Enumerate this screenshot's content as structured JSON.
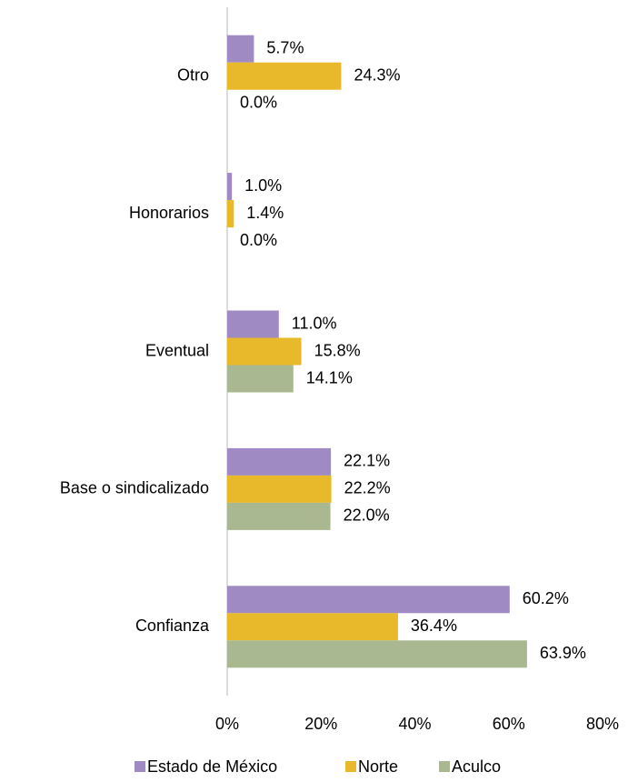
{
  "chart_data": {
    "type": "barh",
    "categories": [
      "Otro",
      "Honorarios",
      "Eventual",
      "Base o sindicalizado",
      "Confianza"
    ],
    "series": [
      {
        "name": "Estado de México",
        "color": "#a08ac4",
        "values": [
          5.7,
          1.0,
          11.0,
          22.1,
          60.2
        ],
        "value_labels": [
          "5.7%",
          "1.0%",
          "11.0%",
          "22.1%",
          "60.2%"
        ]
      },
      {
        "name": "Norte",
        "color": "#e8b92a",
        "values": [
          24.3,
          1.4,
          15.8,
          22.2,
          36.4
        ],
        "value_labels": [
          "24.3%",
          "1.4%",
          "15.8%",
          "22.2%",
          "36.4%"
        ]
      },
      {
        "name": "Aculco",
        "color": "#a9b891",
        "values": [
          0.0,
          0.0,
          14.1,
          22.0,
          63.9
        ],
        "value_labels": [
          "0.0%",
          "0.0%",
          "14.1%",
          "22.0%",
          "63.9%"
        ]
      }
    ],
    "xlim": [
      0,
      80
    ],
    "xticks": [
      {
        "value": 0,
        "label": "0%"
      },
      {
        "value": 20,
        "label": "20%"
      },
      {
        "value": 40,
        "label": "40%"
      },
      {
        "value": 60,
        "label": "60%"
      },
      {
        "value": 80,
        "label": "80%"
      }
    ],
    "legend": "bottom"
  }
}
